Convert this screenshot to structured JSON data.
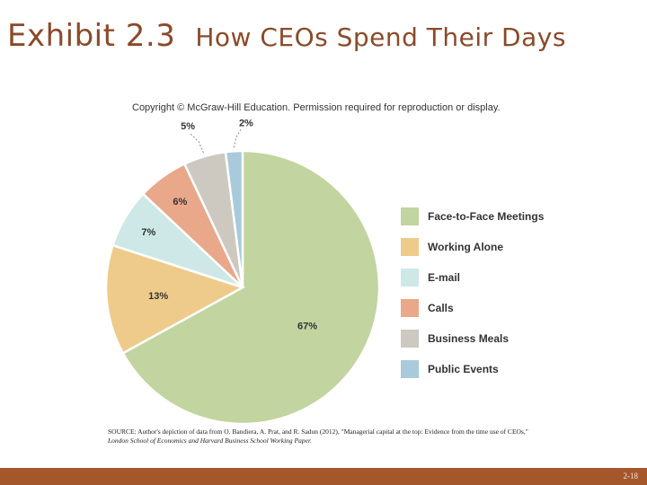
{
  "slide": {
    "exhibit": "Exhibit 2.3",
    "title": "How CEOs Spend Their Days",
    "copyright": "Copyright © McGraw-Hill Education. Permission required for reproduction or display.",
    "source_line1": "SOURCE: Author's depiction of data from O. Bandiera, A. Prat, and R. Sadun (2012), \"Managerial capital at the top: Evidence from the time use of CEOs,\"",
    "source_line2": "London School of Economics and Harvard Business School Working Paper.",
    "page_number": "2-18"
  },
  "chart_data": {
    "type": "pie",
    "title": "How CEOs Spend Their Days",
    "slices": [
      {
        "label": "Face-to-Face Meetings",
        "value": 67,
        "display": "67%",
        "color": "#c2d4a0"
      },
      {
        "label": "Working Alone",
        "value": 13,
        "display": "13%",
        "color": "#eecb8a"
      },
      {
        "label": "E-mail",
        "value": 7,
        "display": "7%",
        "color": "#cde8e6"
      },
      {
        "label": "Calls",
        "value": 6,
        "display": "6%",
        "color": "#e9a88a"
      },
      {
        "label": "Business Meals",
        "value": 5,
        "display": "5%",
        "color": "#cdc9c0"
      },
      {
        "label": "Public Events",
        "value": 2,
        "display": "2%",
        "color": "#a9cadb"
      }
    ],
    "legend_position": "right",
    "start": "top, clockwise"
  }
}
